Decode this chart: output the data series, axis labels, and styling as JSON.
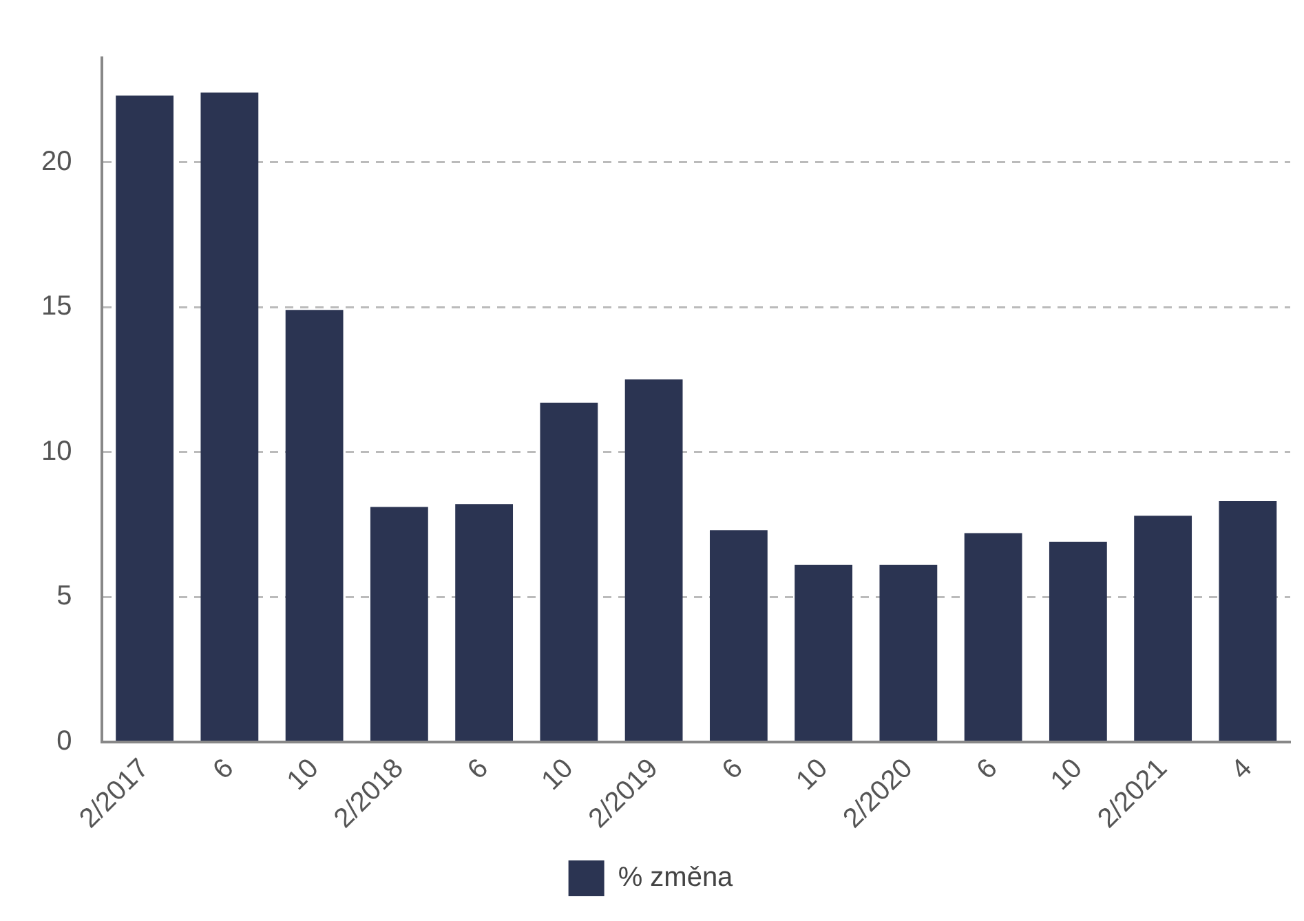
{
  "chart_data": {
    "type": "bar",
    "categories": [
      "2/2017",
      "6",
      "10",
      "2/2018",
      "6",
      "10",
      "2/2019",
      "6",
      "10",
      "2/2020",
      "6",
      "10",
      "2/2021",
      "4"
    ],
    "series": [
      {
        "name": "% změna",
        "color": "#2b3452",
        "values": [
          22.3,
          22.4,
          14.9,
          8.1,
          8.2,
          11.7,
          12.5,
          7.3,
          6.1,
          6.1,
          7.2,
          6.9,
          7.8,
          8.3
        ]
      }
    ],
    "ylim": [
      0,
      23.6
    ],
    "yticks": [
      0,
      5,
      10,
      15,
      20
    ],
    "grid": "y",
    "legend": "bottom"
  }
}
